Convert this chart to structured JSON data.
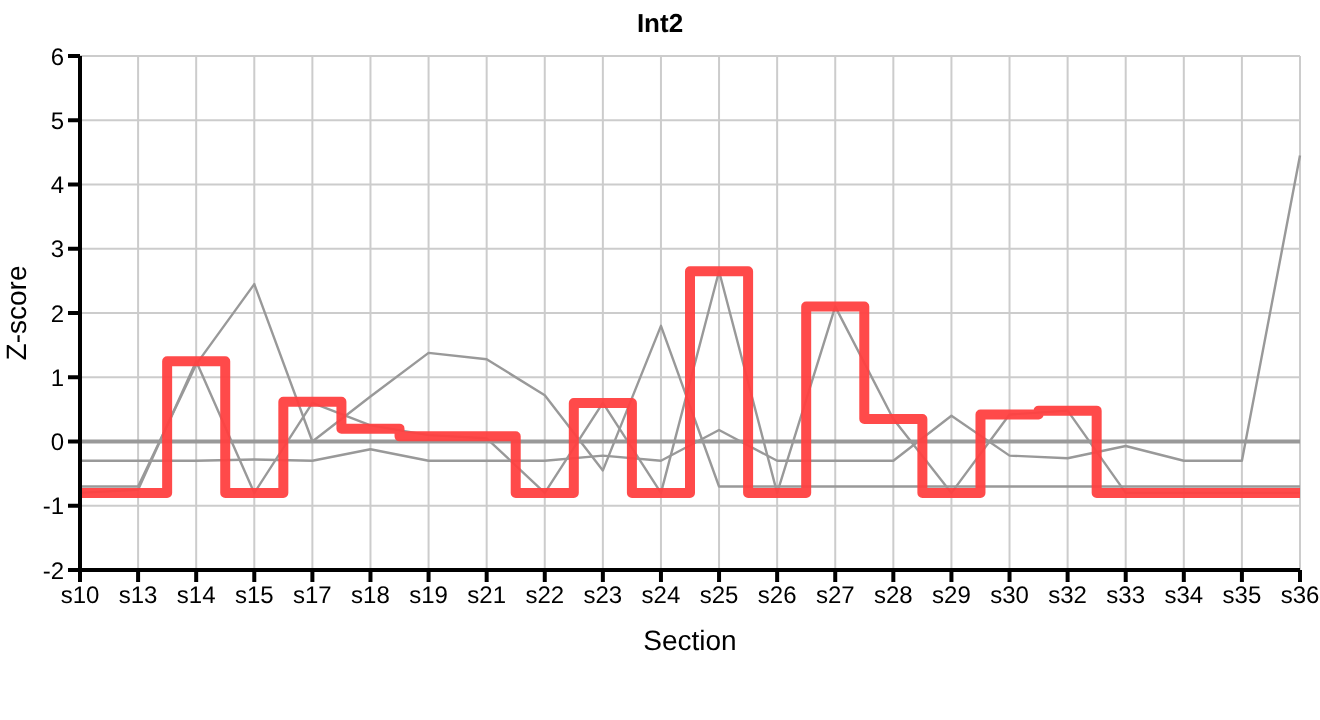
{
  "chart_data": {
    "type": "line",
    "title": "Int2",
    "xlabel": "Section",
    "ylabel": "Z-score",
    "categories": [
      "s10",
      "s13",
      "s14",
      "s15",
      "s17",
      "s18",
      "s19",
      "s21",
      "s22",
      "s23",
      "s24",
      "s25",
      "s26",
      "s27",
      "s28",
      "s29",
      "s30",
      "s32",
      "s33",
      "s34",
      "s35",
      "s36"
    ],
    "series": [
      {
        "color": "#999999",
        "values": [
          -0.7,
          -0.7,
          1.2,
          2.45,
          0.0,
          0.7,
          1.38,
          1.28,
          0.72,
          -0.45,
          1.8,
          -0.7,
          -0.7,
          -0.7,
          -0.7,
          -0.7,
          -0.7,
          -0.7,
          -0.7,
          -0.7,
          -0.7,
          -0.7
        ]
      },
      {
        "color": "#999999",
        "values": [
          -0.3,
          -0.3,
          -0.3,
          -0.28,
          -0.3,
          -0.12,
          -0.3,
          -0.3,
          -0.3,
          -0.22,
          -0.3,
          0.18,
          -0.3,
          -0.3,
          -0.3,
          0.4,
          -0.22,
          -0.26,
          -0.07,
          -0.3,
          -0.3,
          4.45
        ]
      },
      {
        "color": "#999999",
        "values": [
          -0.8,
          -0.75,
          1.25,
          -0.8,
          0.6,
          0.25,
          0.1,
          0.05,
          -0.8,
          0.6,
          -0.8,
          2.65,
          -0.8,
          2.1,
          0.35,
          -0.8,
          0.42,
          0.48,
          -0.8,
          -0.8,
          -0.8,
          -0.8
        ]
      },
      {
        "type": "step",
        "color": "#ff4040",
        "values": [
          -0.8,
          -0.8,
          1.25,
          -0.8,
          0.62,
          0.2,
          0.08,
          0.08,
          -0.8,
          0.6,
          -0.8,
          2.65,
          -0.8,
          2.1,
          0.35,
          -0.8,
          0.42,
          0.48,
          -0.8,
          -0.8,
          -0.8,
          -0.8
        ]
      }
    ],
    "ylim": [
      -2,
      6
    ],
    "yticks": [
      -2,
      -1,
      0,
      1,
      2,
      3,
      4,
      5,
      6
    ],
    "ref_lines": [
      {
        "axis": "y",
        "value": 0,
        "color": "#999999"
      }
    ],
    "grid": true,
    "marker": "none",
    "line_style": "solid"
  }
}
